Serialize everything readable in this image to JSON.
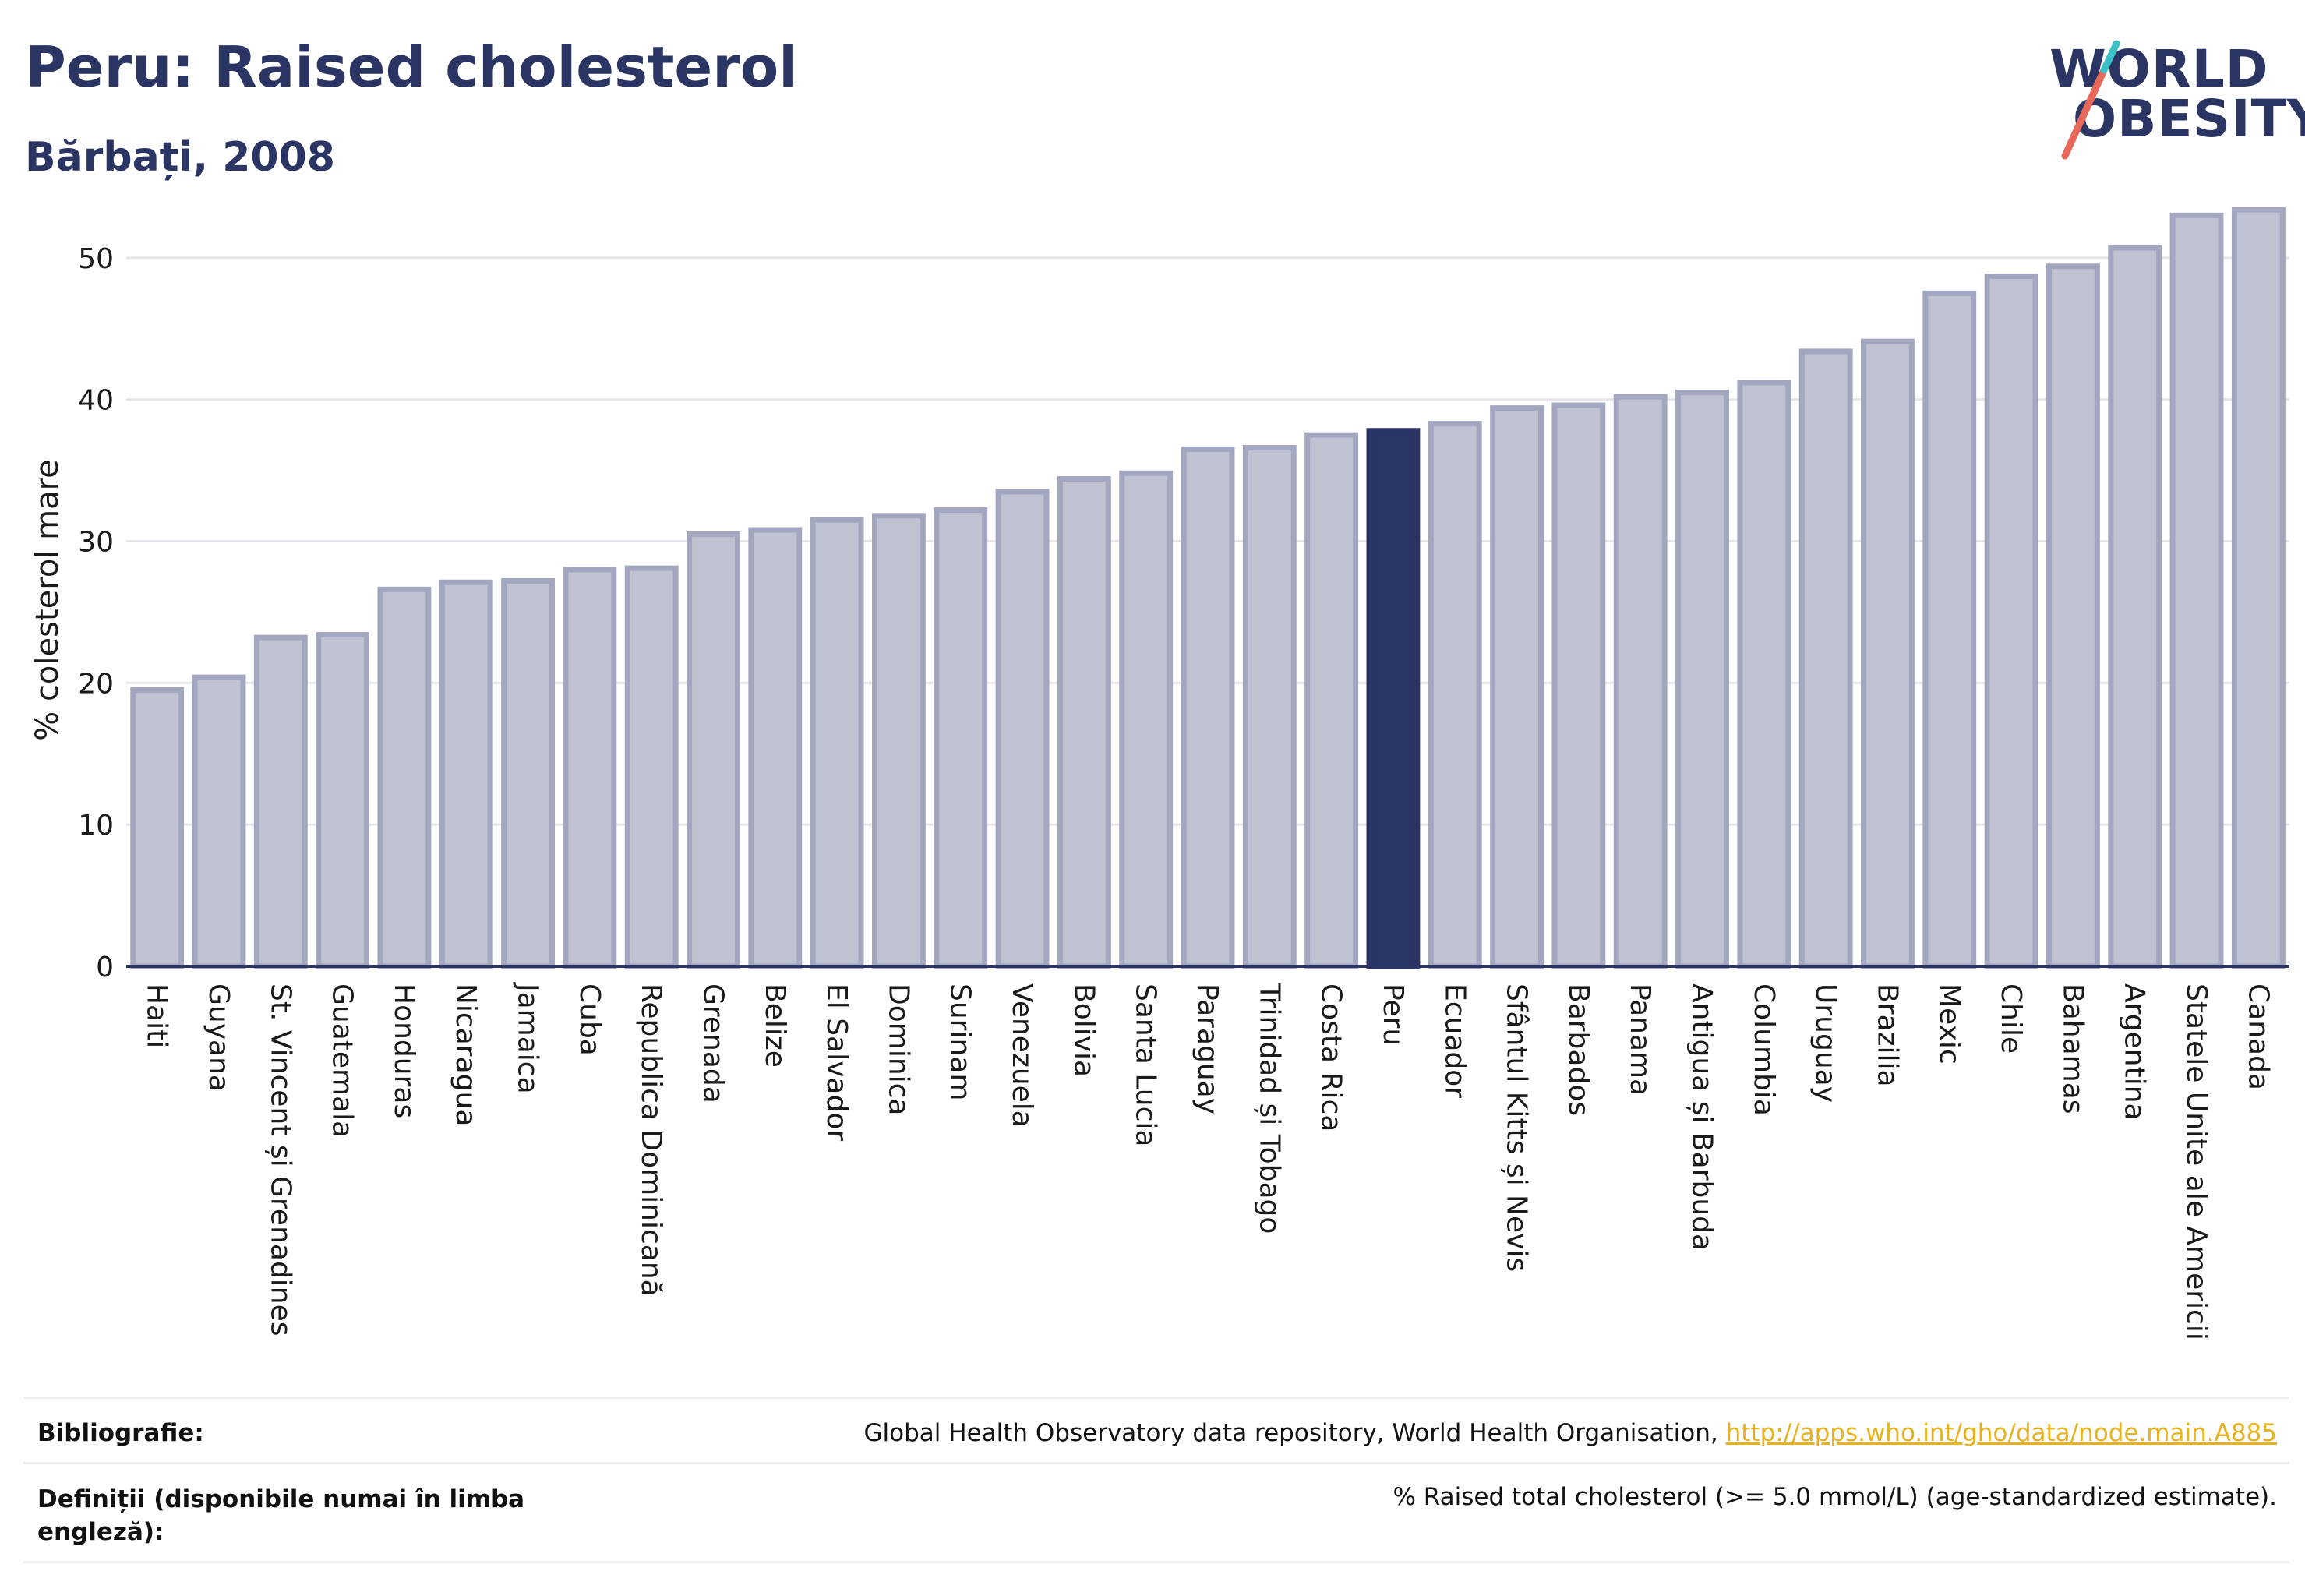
{
  "header": {
    "title": "Peru: Raised cholesterol",
    "subtitle": "Bărbați, 2008"
  },
  "logo": {
    "line1": "WORLD",
    "line2": "OBESITY"
  },
  "colors": {
    "highlight": "#2a3563",
    "bar_fill": "#bfc2d0",
    "bar_stroke": "#a2a7bf",
    "logo_slash_red": "#e8695a",
    "logo_slash_teal": "#3cc0c7",
    "link": "#e8b21e"
  },
  "chart_data": {
    "type": "bar",
    "ylabel": "% colesterol mare",
    "ylim": [
      0,
      55
    ],
    "yticks": [
      0,
      10,
      20,
      30,
      40,
      50
    ],
    "grid": true,
    "highlight": "Peru",
    "categories": [
      "Haiti",
      "Guyana",
      "St. Vincent și Grenadines",
      "Guatemala",
      "Honduras",
      "Nicaragua",
      "Jamaica",
      "Cuba",
      "Republica Dominicană",
      "Grenada",
      "Belize",
      "El Salvador",
      "Dominica",
      "Surinam",
      "Venezuela",
      "Bolivia",
      "Santa Lucia",
      "Paraguay",
      "Trinidad și Tobago",
      "Costa Rica",
      "Peru",
      "Ecuador",
      "Sfântul Kitts și Nevis",
      "Barbados",
      "Panama",
      "Antigua și Barbuda",
      "Columbia",
      "Uruguay",
      "Brazilia",
      "Mexic",
      "Chile",
      "Bahamas",
      "Argentina",
      "Statele Unite ale Americii",
      "Canada"
    ],
    "values": [
      19.5,
      20.4,
      23.2,
      23.4,
      26.6,
      27.1,
      27.2,
      28.0,
      28.1,
      30.5,
      30.8,
      31.5,
      31.8,
      32.2,
      33.5,
      34.4,
      34.8,
      36.5,
      36.6,
      37.5,
      37.8,
      38.3,
      39.4,
      39.6,
      40.2,
      40.5,
      41.2,
      43.4,
      44.1,
      47.5,
      48.7,
      49.4,
      50.7,
      53.0,
      53.4
    ]
  },
  "footer": {
    "bibliography_label": "Bibliografie:",
    "bibliography_text": "Global Health Observatory data repository, World Health Organisation, ",
    "bibliography_link": "http://apps.who.int/gho/data/node.main.A885",
    "definitions_label": "Definiții (disponibile numai în limba engleză):",
    "definitions_text": "% Raised total cholesterol (>= 5.0 mmol/L) (age-standardized estimate)."
  }
}
